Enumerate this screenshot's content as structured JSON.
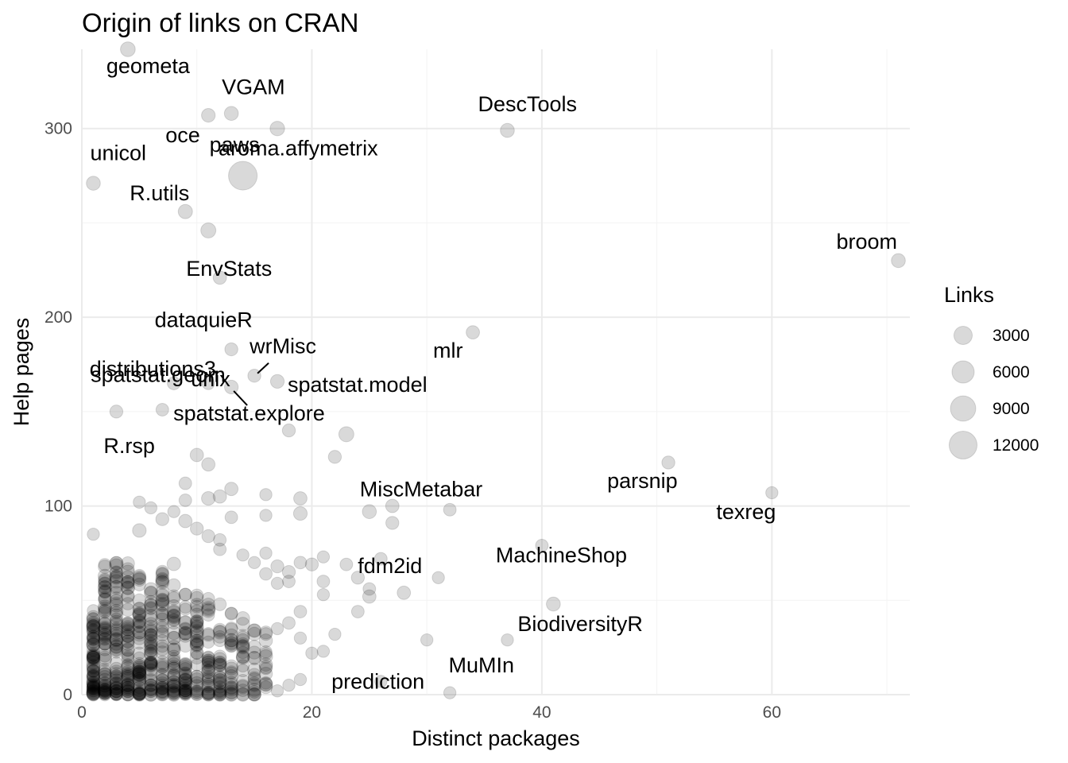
{
  "chart_data": {
    "type": "scatter",
    "title": "Origin of links on CRAN",
    "xlabel": "Distinct packages",
    "ylabel": "Help pages",
    "xlim": [
      0,
      72
    ],
    "ylim": [
      0,
      342
    ],
    "x_ticks": [
      0,
      20,
      40,
      60
    ],
    "y_ticks": [
      0,
      100,
      200,
      300
    ],
    "grid": true,
    "point_color": "#000000",
    "point_alpha": 0.15,
    "legend": {
      "title": "Links",
      "position": "right",
      "entries": [
        {
          "label": "3000",
          "size": 3000
        },
        {
          "label": "6000",
          "size": 6000
        },
        {
          "label": "9000",
          "size": 9000
        },
        {
          "label": "12000",
          "size": 12000
        }
      ]
    },
    "labeled_points": [
      {
        "label": "geometa",
        "x": 4,
        "y": 342,
        "links": 1200
      },
      {
        "label": "VGAM",
        "x": 13,
        "y": 308,
        "links": 900
      },
      {
        "label": "oce",
        "x": 11,
        "y": 307,
        "links": 800
      },
      {
        "label": "aroma.affymetrix",
        "x": 17,
        "y": 300,
        "links": 1100
      },
      {
        "label": "DescTools",
        "x": 37,
        "y": 299,
        "links": 900
      },
      {
        "label": "paws",
        "x": 14,
        "y": 275,
        "links": 13000
      },
      {
        "label": "unicol",
        "x": 1,
        "y": 271,
        "links": 900
      },
      {
        "label": "R.utils",
        "x": 9,
        "y": 256,
        "links": 1000
      },
      {
        "label": "EnvStats",
        "x": 11,
        "y": 246,
        "links": 1300
      },
      {
        "label": "broom",
        "x": 71,
        "y": 230,
        "links": 900
      },
      {
        "label": "dataquieR",
        "x": 12,
        "y": 221,
        "links": 700
      },
      {
        "label": "mlr",
        "x": 34,
        "y": 192,
        "links": 700
      },
      {
        "label": "spatstat.geom",
        "x": 13,
        "y": 183,
        "links": 600
      },
      {
        "label": "wrMisc",
        "x": 15,
        "y": 169,
        "links": 600
      },
      {
        "label": "distributions3",
        "x": 8,
        "y": 165,
        "links": 600
      },
      {
        "label": "unix",
        "x": 11,
        "y": 165,
        "links": 500
      },
      {
        "label": "spatstat.model",
        "x": 17,
        "y": 166,
        "links": 800
      },
      {
        "label": "spatstat.explore",
        "x": 13,
        "y": 163,
        "links": 800
      },
      {
        "label": "R.rsp",
        "x": 3,
        "y": 150,
        "links": 600
      },
      {
        "label": "parsnip",
        "x": 51,
        "y": 123,
        "links": 600
      },
      {
        "label": "texreg",
        "x": 60,
        "y": 107,
        "links": 400
      },
      {
        "label": "MiscMetabar",
        "x": 27,
        "y": 100,
        "links": 700
      },
      {
        "label": "MachineShop",
        "x": 40,
        "y": 79,
        "links": 500
      },
      {
        "label": "fdm2id",
        "x": 26,
        "y": 72,
        "links": 500
      },
      {
        "label": "BiodiversityR",
        "x": 41,
        "y": 48,
        "links": 900
      },
      {
        "label": "MuMIn",
        "x": 37,
        "y": 29,
        "links": 400
      },
      {
        "label": "prediction",
        "x": 32,
        "y": 1,
        "links": 400
      }
    ],
    "points": [
      {
        "x": 23,
        "y": 138,
        "links": 1300
      },
      {
        "x": 22,
        "y": 126,
        "links": 600
      },
      {
        "x": 18,
        "y": 140,
        "links": 600
      },
      {
        "x": 10,
        "y": 127,
        "links": 700
      },
      {
        "x": 11,
        "y": 122,
        "links": 700
      },
      {
        "x": 7,
        "y": 151,
        "links": 500
      },
      {
        "x": 9,
        "y": 112,
        "links": 500
      },
      {
        "x": 13,
        "y": 109,
        "links": 700
      },
      {
        "x": 12,
        "y": 105,
        "links": 700
      },
      {
        "x": 11,
        "y": 104,
        "links": 800
      },
      {
        "x": 19,
        "y": 104,
        "links": 700
      },
      {
        "x": 16,
        "y": 106,
        "links": 400
      },
      {
        "x": 9,
        "y": 103,
        "links": 500
      },
      {
        "x": 5,
        "y": 102,
        "links": 400
      },
      {
        "x": 25,
        "y": 97,
        "links": 900
      },
      {
        "x": 19,
        "y": 96,
        "links": 800
      },
      {
        "x": 27,
        "y": 91,
        "links": 600
      },
      {
        "x": 32,
        "y": 98,
        "links": 500
      },
      {
        "x": 6,
        "y": 99,
        "links": 400
      },
      {
        "x": 13,
        "y": 94,
        "links": 500
      },
      {
        "x": 16,
        "y": 95,
        "links": 400
      },
      {
        "x": 8,
        "y": 97,
        "links": 400
      },
      {
        "x": 9,
        "y": 92,
        "links": 700
      },
      {
        "x": 7,
        "y": 93,
        "links": 600
      },
      {
        "x": 1,
        "y": 85,
        "links": 400
      },
      {
        "x": 5,
        "y": 87,
        "links": 800
      },
      {
        "x": 10,
        "y": 88,
        "links": 600
      },
      {
        "x": 12,
        "y": 82,
        "links": 500
      },
      {
        "x": 15,
        "y": 70,
        "links": 400
      },
      {
        "x": 17,
        "y": 68,
        "links": 600
      },
      {
        "x": 20,
        "y": 69,
        "links": 600
      },
      {
        "x": 21,
        "y": 73,
        "links": 400
      },
      {
        "x": 23,
        "y": 69,
        "links": 500
      },
      {
        "x": 24,
        "y": 62,
        "links": 600
      },
      {
        "x": 18,
        "y": 65,
        "links": 600
      },
      {
        "x": 25,
        "y": 56,
        "links": 500
      },
      {
        "x": 25,
        "y": 52,
        "links": 700
      },
      {
        "x": 28,
        "y": 54,
        "links": 700
      },
      {
        "x": 31,
        "y": 62,
        "links": 400
      },
      {
        "x": 24,
        "y": 44,
        "links": 500
      },
      {
        "x": 21,
        "y": 60,
        "links": 500
      },
      {
        "x": 21,
        "y": 53,
        "links": 400
      },
      {
        "x": 19,
        "y": 44,
        "links": 500
      },
      {
        "x": 22,
        "y": 32,
        "links": 400
      },
      {
        "x": 30,
        "y": 29,
        "links": 400
      },
      {
        "x": 20,
        "y": 22,
        "links": 400
      },
      {
        "x": 21,
        "y": 23,
        "links": 400
      },
      {
        "x": 18,
        "y": 5,
        "links": 400
      },
      {
        "x": 19,
        "y": 8,
        "links": 400
      },
      {
        "x": 26,
        "y": 7,
        "links": 400
      },
      {
        "x": 17,
        "y": 2,
        "links": 400
      },
      {
        "x": 14,
        "y": 74,
        "links": 400
      },
      {
        "x": 16,
        "y": 75,
        "links": 400
      },
      {
        "x": 12,
        "y": 77,
        "links": 500
      },
      {
        "x": 11,
        "y": 84,
        "links": 600
      },
      {
        "x": 18,
        "y": 60,
        "links": 500
      },
      {
        "x": 18,
        "y": 38,
        "links": 500
      },
      {
        "x": 17,
        "y": 35,
        "links": 400
      },
      {
        "x": 19,
        "y": 30,
        "links": 400
      },
      {
        "x": 19,
        "y": 70,
        "links": 500
      },
      {
        "x": 17,
        "y": 59,
        "links": 400
      },
      {
        "x": 16,
        "y": 64,
        "links": 500
      }
    ]
  }
}
